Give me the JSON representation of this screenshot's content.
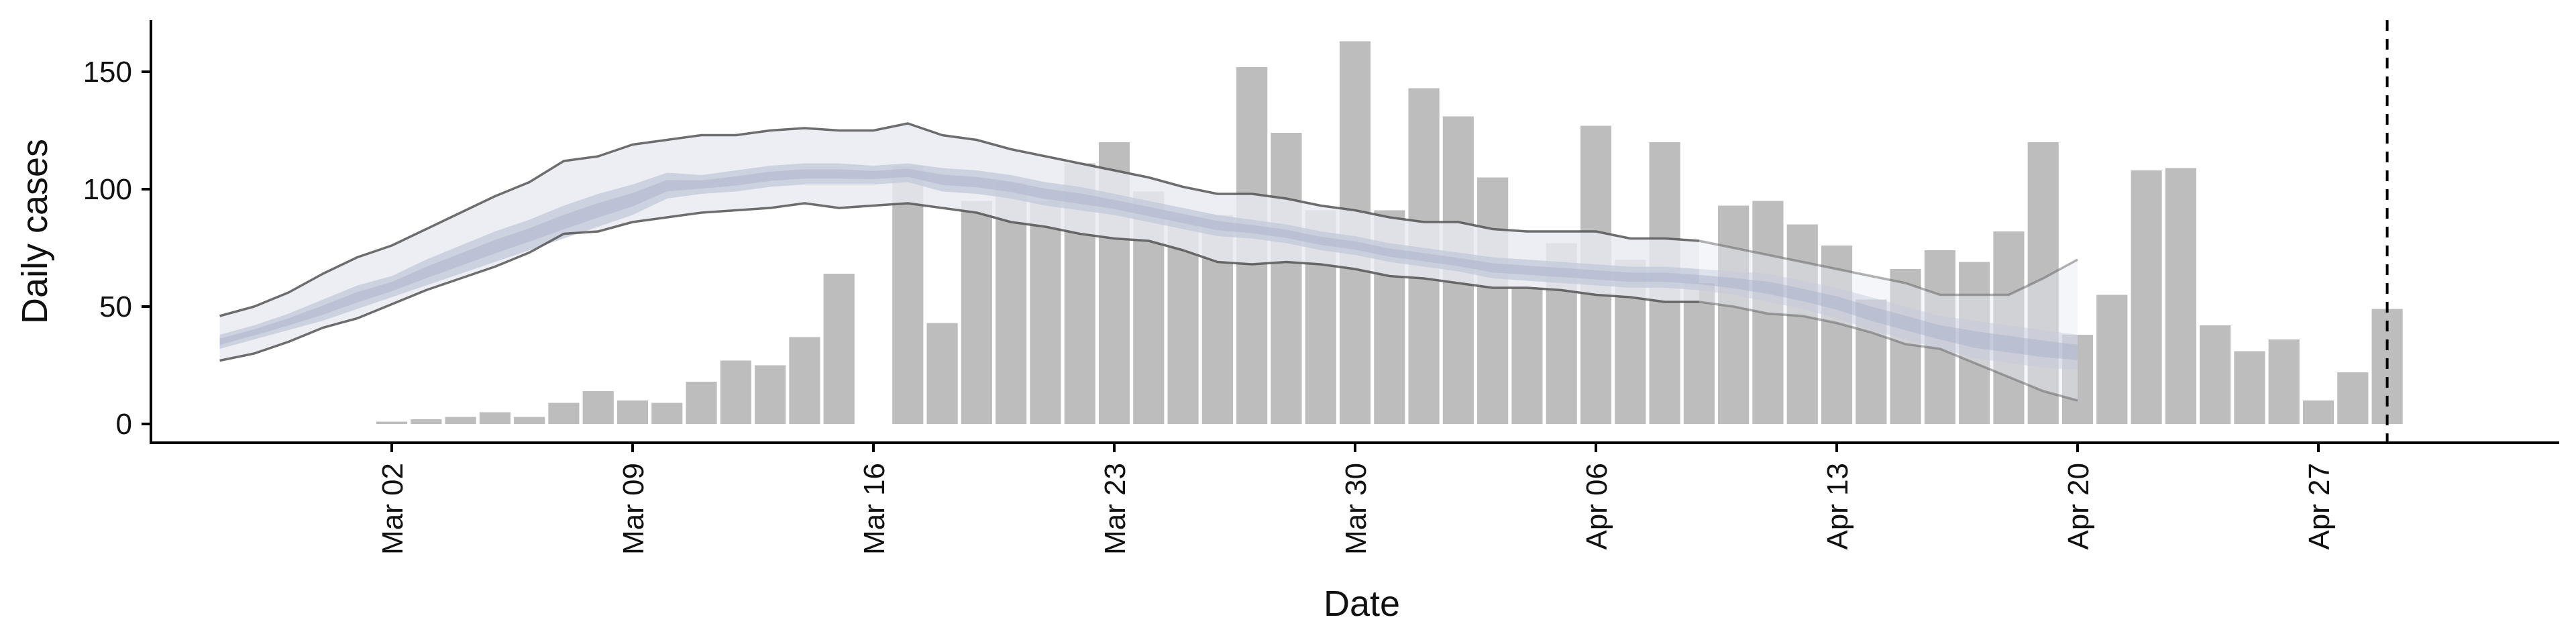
{
  "chart_data": {
    "type": "bar",
    "title": "",
    "xlabel": "Date",
    "ylabel": "Daily cases",
    "ylim": [
      -8,
      172
    ],
    "yticks": [
      0,
      50,
      100,
      150
    ],
    "xlim": [
      "2020-02-24",
      "2020-05-04"
    ],
    "xticks": [
      {
        "date": "2020-03-02",
        "label": "Mar 02"
      },
      {
        "date": "2020-03-09",
        "label": "Mar 09"
      },
      {
        "date": "2020-03-16",
        "label": "Mar 16"
      },
      {
        "date": "2020-03-23",
        "label": "Mar 23"
      },
      {
        "date": "2020-03-30",
        "label": "Mar 30"
      },
      {
        "date": "2020-04-06",
        "label": "Apr 06"
      },
      {
        "date": "2020-04-13",
        "label": "Apr 13"
      },
      {
        "date": "2020-04-20",
        "label": "Apr 20"
      },
      {
        "date": "2020-04-27",
        "label": "Apr 27"
      }
    ],
    "grid": false,
    "legend": "none",
    "colors": {
      "bars": "#bdbdbd",
      "band_outer": "#e9eaf1",
      "band_inner": "#c4cadc",
      "band_center": "#a7b0c9",
      "bound_lines": "#7a7a7a"
    },
    "bars": {
      "name": "Observed daily cases",
      "dates": [
        "2020-03-02",
        "2020-03-03",
        "2020-03-04",
        "2020-03-05",
        "2020-03-06",
        "2020-03-07",
        "2020-03-08",
        "2020-03-09",
        "2020-03-10",
        "2020-03-11",
        "2020-03-12",
        "2020-03-13",
        "2020-03-14",
        "2020-03-15",
        "2020-03-17",
        "2020-03-18",
        "2020-03-19",
        "2020-03-20",
        "2020-03-21",
        "2020-03-22",
        "2020-03-23",
        "2020-03-24",
        "2020-03-25",
        "2020-03-26",
        "2020-03-27",
        "2020-03-28",
        "2020-03-29",
        "2020-03-30",
        "2020-03-31",
        "2020-04-01",
        "2020-04-02",
        "2020-04-03",
        "2020-04-04",
        "2020-04-05",
        "2020-04-06",
        "2020-04-07",
        "2020-04-08",
        "2020-04-09",
        "2020-04-10",
        "2020-04-11",
        "2020-04-12",
        "2020-04-13",
        "2020-04-14",
        "2020-04-15",
        "2020-04-16",
        "2020-04-17",
        "2020-04-18",
        "2020-04-19",
        "2020-04-20",
        "2020-04-21",
        "2020-04-22",
        "2020-04-23",
        "2020-04-24",
        "2020-04-25",
        "2020-04-26",
        "2020-04-27",
        "2020-04-28",
        "2020-04-29"
      ],
      "values": [
        1,
        2,
        3,
        5,
        3,
        9,
        14,
        10,
        9,
        18,
        27,
        25,
        37,
        64,
        110,
        43,
        95,
        103,
        95,
        111,
        120,
        99,
        88,
        89,
        152,
        124,
        91,
        163,
        91,
        143,
        131,
        105,
        58,
        77,
        127,
        70,
        120,
        60,
        93,
        95,
        85,
        76,
        53,
        66,
        74,
        69,
        82,
        120,
        38,
        55,
        108,
        109,
        42,
        31,
        36,
        10,
        22,
        49
      ]
    },
    "estimate": {
      "name": "Estimated daily cases",
      "dates": [
        "2020-02-26",
        "2020-02-27",
        "2020-02-28",
        "2020-02-29",
        "2020-03-01",
        "2020-03-02",
        "2020-03-03",
        "2020-03-04",
        "2020-03-05",
        "2020-03-06",
        "2020-03-07",
        "2020-03-08",
        "2020-03-09",
        "2020-03-10",
        "2020-03-11",
        "2020-03-12",
        "2020-03-13",
        "2020-03-14",
        "2020-03-15",
        "2020-03-16",
        "2020-03-17",
        "2020-03-18",
        "2020-03-19",
        "2020-03-20",
        "2020-03-21",
        "2020-03-22",
        "2020-03-23",
        "2020-03-24",
        "2020-03-25",
        "2020-03-26",
        "2020-03-27",
        "2020-03-28",
        "2020-03-29",
        "2020-03-30",
        "2020-03-31",
        "2020-04-01",
        "2020-04-02",
        "2020-04-03",
        "2020-04-04",
        "2020-04-05",
        "2020-04-06",
        "2020-04-07",
        "2020-04-08",
        "2020-04-09",
        "2020-04-10",
        "2020-04-11",
        "2020-04-12",
        "2020-04-13",
        "2020-04-14",
        "2020-04-15",
        "2020-04-16",
        "2020-04-17",
        "2020-04-18",
        "2020-04-19",
        "2020-04-20"
      ],
      "upper_90": [
        46,
        50,
        56,
        64,
        71,
        76,
        83,
        90,
        97,
        103,
        112,
        114,
        119,
        121,
        123,
        123,
        125,
        126,
        125,
        125,
        128,
        123,
        121,
        117,
        114,
        111,
        108,
        105,
        101,
        98,
        98,
        96,
        93,
        91,
        88,
        86,
        86,
        83,
        82,
        82,
        82,
        79,
        79,
        78,
        75,
        72,
        69,
        66,
        63,
        60,
        55,
        55,
        55,
        62,
        70
      ],
      "upper_50": [
        38,
        42,
        47,
        53,
        59,
        63,
        70,
        76,
        82,
        87,
        93,
        98,
        102,
        107,
        106,
        108,
        110,
        111,
        111,
        110,
        111,
        109,
        108,
        106,
        103,
        101,
        98,
        95,
        92,
        89,
        87,
        85,
        82,
        80,
        77,
        75,
        73,
        71,
        70,
        69,
        68,
        67,
        67,
        66,
        65,
        64,
        61,
        58,
        54,
        50,
        46,
        44,
        42,
        40,
        38
      ],
      "lower_50": [
        32,
        36,
        40,
        44,
        49,
        54,
        59,
        64,
        69,
        74,
        79,
        84,
        89,
        96,
        98,
        99,
        101,
        102,
        102,
        102,
        103,
        99,
        98,
        96,
        93,
        91,
        89,
        86,
        83,
        80,
        79,
        77,
        74,
        72,
        69,
        67,
        65,
        62,
        61,
        60,
        59,
        58,
        58,
        57,
        55,
        52,
        49,
        45,
        40,
        36,
        32,
        28,
        26,
        24,
        23
      ],
      "lower_90": [
        27,
        30,
        35,
        41,
        45,
        51,
        57,
        62,
        67,
        73,
        81,
        82,
        86,
        88,
        90,
        91,
        92,
        94,
        92,
        93,
        94,
        92,
        90,
        86,
        84,
        81,
        79,
        78,
        74,
        69,
        68,
        69,
        68,
        66,
        63,
        62,
        60,
        58,
        58,
        57,
        55,
        54,
        52,
        52,
        50,
        47,
        46,
        43,
        39,
        34,
        32,
        26,
        20,
        14,
        10
      ]
    },
    "vline": {
      "date": "2020-04-29",
      "style": "dashed"
    }
  }
}
